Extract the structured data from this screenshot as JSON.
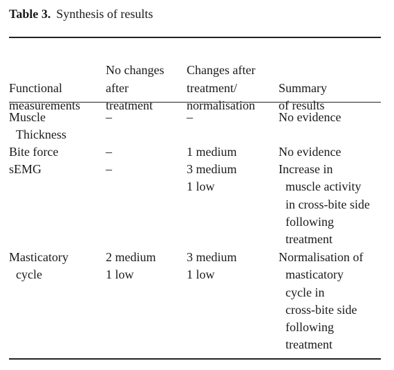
{
  "table": {
    "number": "Table 3.",
    "title": "Synthesis of results",
    "headers": [
      [
        "",
        "",
        "Functional",
        "measurements"
      ],
      [
        "",
        "No changes",
        "after",
        "treatment"
      ],
      [
        "",
        "Changes after",
        "treatment/",
        "normalisation"
      ],
      [
        "",
        "",
        "Summary",
        "of results"
      ]
    ],
    "rows": [
      {
        "measurement": [
          "Muscle",
          "Thickness"
        ],
        "no_changes": [
          "–"
        ],
        "changes": [
          "–"
        ],
        "summary": [
          "No evidence"
        ]
      },
      {
        "measurement": [
          "Bite force"
        ],
        "no_changes": [
          "–"
        ],
        "changes": [
          "1 medium"
        ],
        "summary": [
          "No evidence"
        ]
      },
      {
        "measurement": [
          "sEMG"
        ],
        "no_changes": [
          "–"
        ],
        "changes": [
          "3 medium",
          "1 low"
        ],
        "summary": [
          "Increase in",
          "muscle activity",
          "in cross-bite side",
          "following",
          "treatment"
        ]
      },
      {
        "measurement": [
          "Masticatory",
          "cycle"
        ],
        "no_changes": [
          "2 medium",
          "1 low"
        ],
        "changes": [
          "3 medium",
          "1 low"
        ],
        "summary": [
          "Normalisation of",
          "masticatory",
          "cycle in",
          "cross-bite side",
          "following",
          "treatment"
        ]
      }
    ]
  }
}
